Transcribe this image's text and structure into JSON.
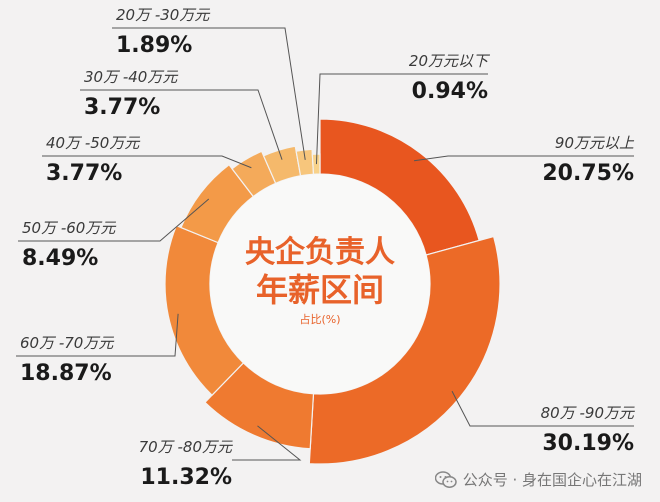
{
  "chart_data": {
    "type": "pie",
    "title_line1": "央企负责人",
    "title_line2": "年薪区间",
    "subtitle": "占比(%)",
    "slices": [
      {
        "label": "90万元以上",
        "value": 20.75,
        "display": "20.75%",
        "color": "#e8561f"
      },
      {
        "label": "80万 -90万元",
        "value": 30.19,
        "display": "30.19%",
        "color": "#ec6a27"
      },
      {
        "label": "70万 -80万元",
        "value": 11.32,
        "display": "11.32%",
        "color": "#ef7a30"
      },
      {
        "label": "60万 -70万元",
        "value": 18.87,
        "display": "18.87%",
        "color": "#f1893a"
      },
      {
        "label": "50万 -60万元",
        "value": 8.49,
        "display": "8.49%",
        "color": "#f39a48"
      },
      {
        "label": "40万 -50万元",
        "value": 3.77,
        "display": "3.77%",
        "color": "#f4aa5a"
      },
      {
        "label": "30万 -40万元",
        "value": 3.77,
        "display": "3.77%",
        "color": "#f5b96b"
      },
      {
        "label": "20万 -30万元",
        "value": 1.89,
        "display": "1.89%",
        "color": "#f7c67c"
      },
      {
        "label": "20万元以下",
        "value": 0.94,
        "display": "0.94%",
        "color": "#f8d28a"
      }
    ]
  },
  "watermark": {
    "text": "公众号 · 身在国企心在江湖",
    "icon": "wechat-icon"
  }
}
